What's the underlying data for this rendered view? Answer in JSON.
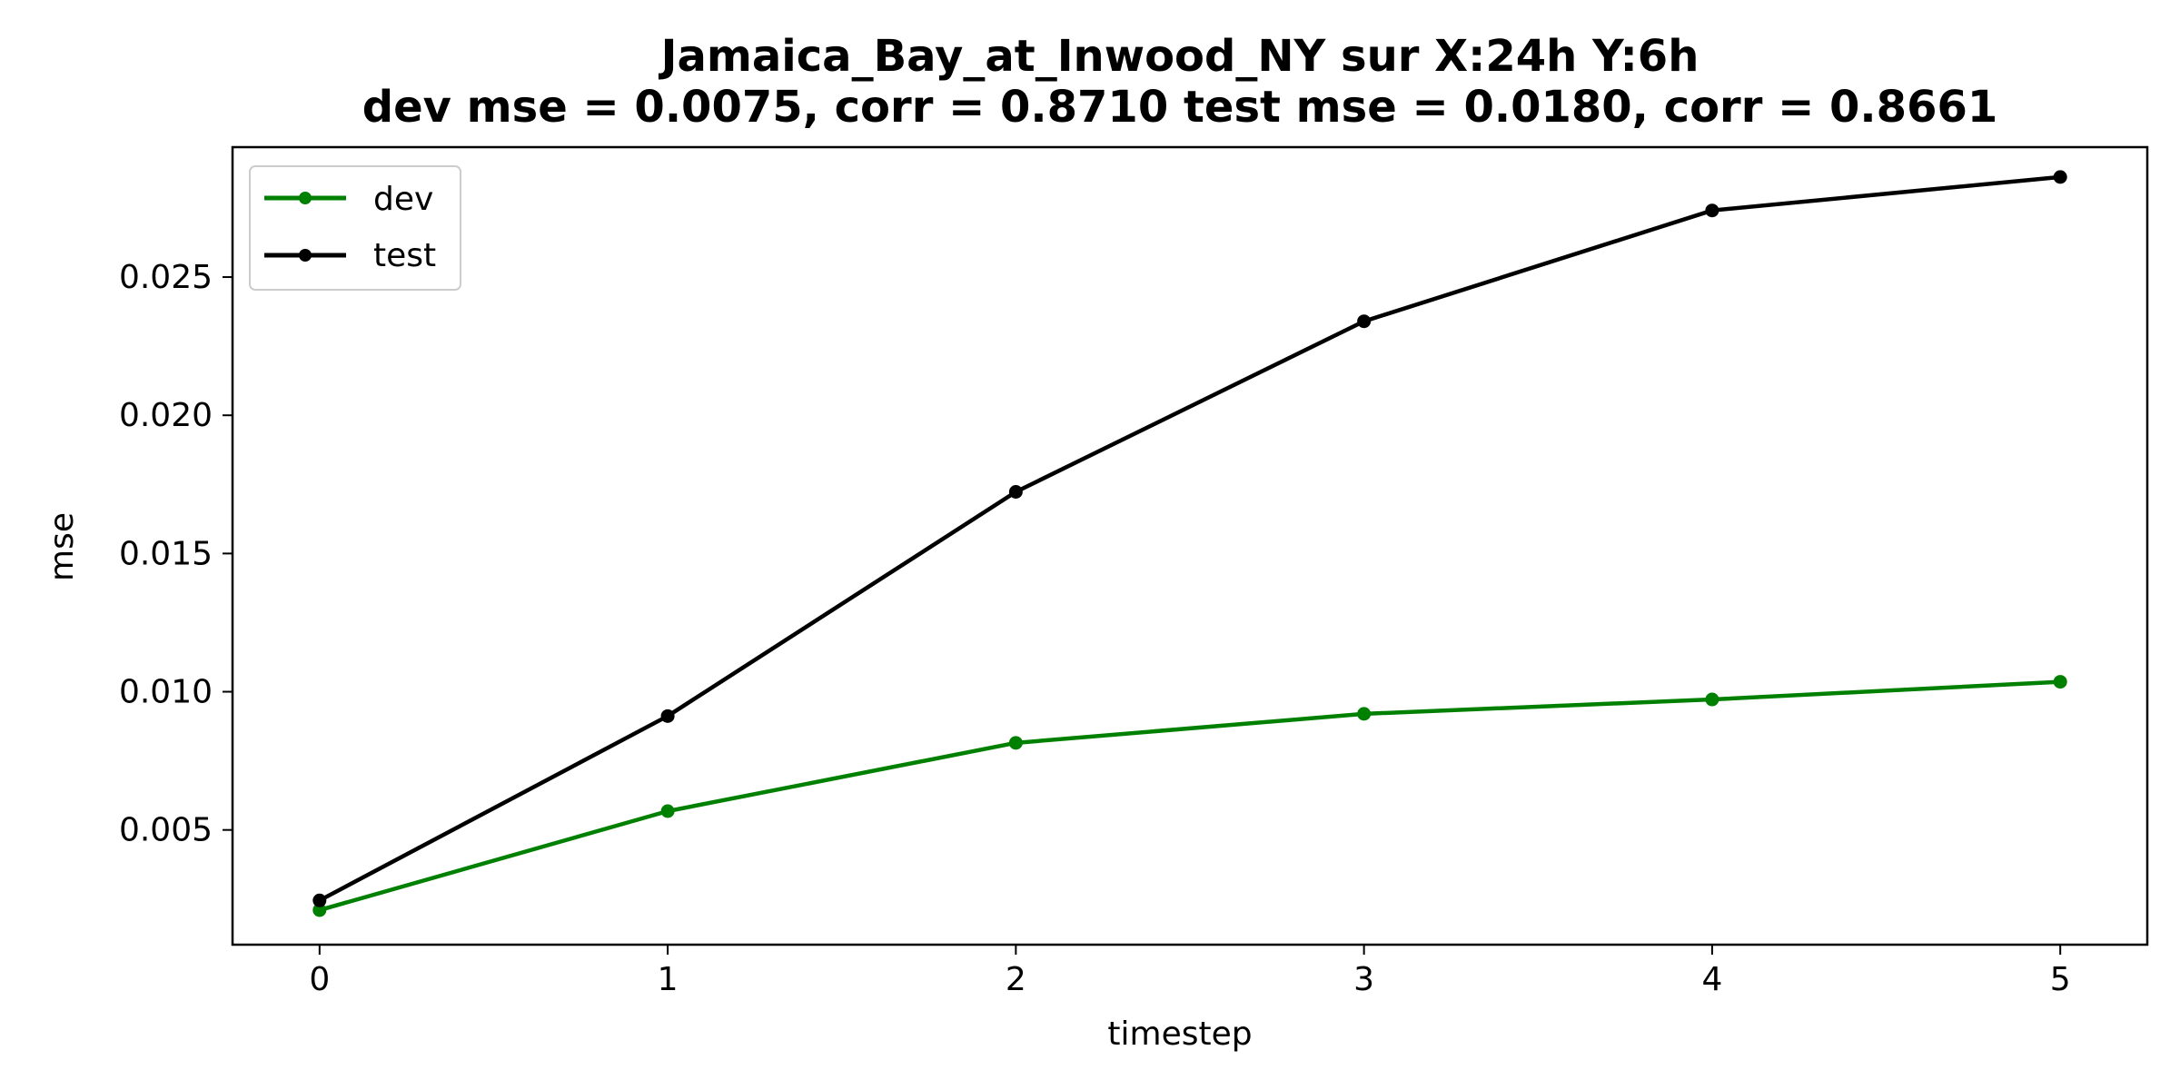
{
  "chart_data": {
    "type": "line",
    "title_line1": "Jamaica_Bay_at_Inwood_NY   sur   X:24h   Y:6h",
    "title_line2": "dev mse = 0.0075, corr = 0.8710   test mse = 0.0180, corr = 0.8661",
    "xlabel": "timestep",
    "ylabel": "mse",
    "x": [
      0,
      1,
      2,
      3,
      4,
      5
    ],
    "xticks": [
      "0",
      "1",
      "2",
      "3",
      "4",
      "5"
    ],
    "yticks": [
      "0.005",
      "0.010",
      "0.015",
      "0.020",
      "0.025"
    ],
    "xlim": [
      -0.25,
      5.25
    ],
    "ylim": [
      0.00085,
      0.0297
    ],
    "grid": false,
    "legend_position": "upper-left",
    "series": [
      {
        "name": "dev",
        "color": "#008000",
        "values": [
          0.0021,
          0.00568,
          0.00815,
          0.0092,
          0.00972,
          0.01036
        ]
      },
      {
        "name": "test",
        "color": "#000000",
        "values": [
          0.00245,
          0.00912,
          0.01723,
          0.0234,
          0.02741,
          0.02862
        ]
      }
    ]
  }
}
